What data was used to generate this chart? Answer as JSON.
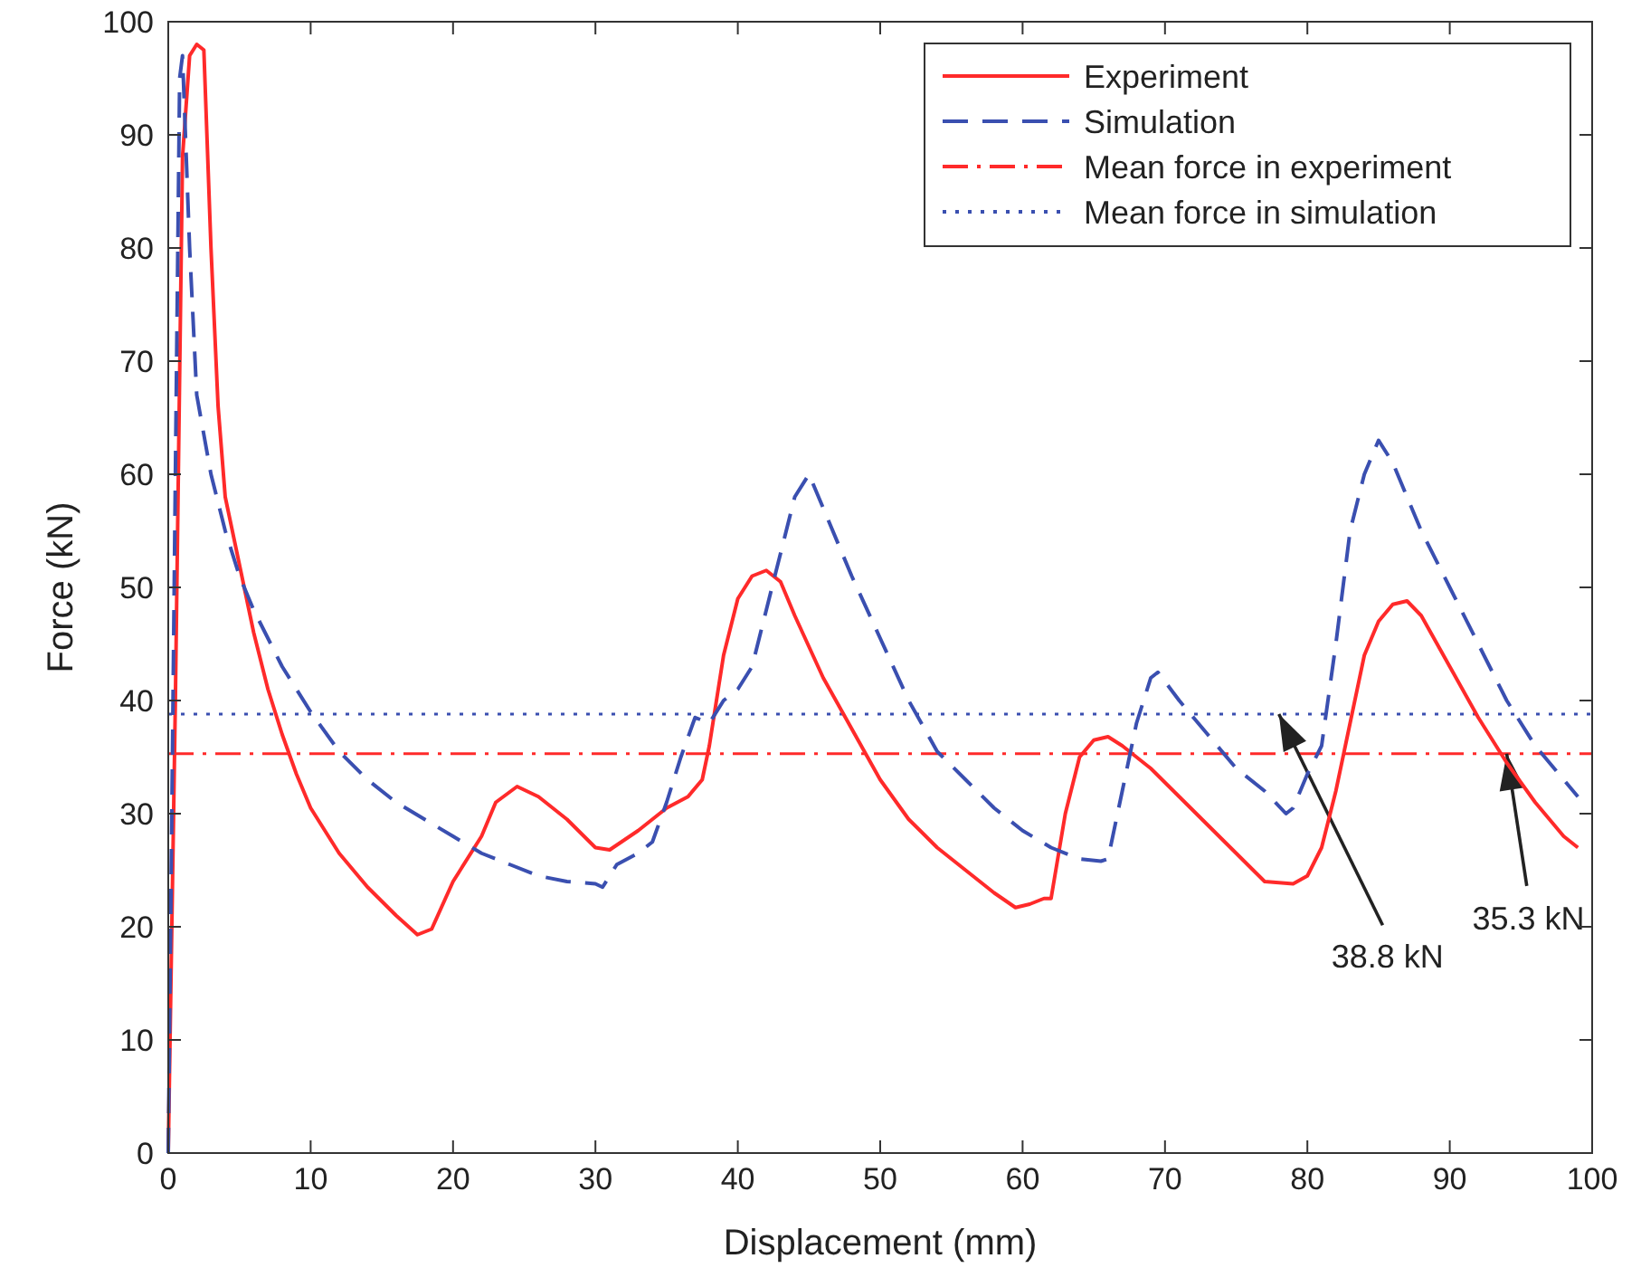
{
  "chart_data": {
    "type": "line",
    "xlabel": "Displacement (mm)",
    "ylabel": "Force (kN)",
    "xlim": [
      0,
      100
    ],
    "ylim": [
      0,
      100
    ],
    "xticks": [
      0,
      10,
      20,
      30,
      40,
      50,
      60,
      70,
      80,
      90,
      100
    ],
    "yticks": [
      0,
      10,
      20,
      30,
      40,
      50,
      60,
      70,
      80,
      90,
      100
    ],
    "legend": "top right",
    "series": [
      {
        "name": "Experiment",
        "color": "#ff2a2a",
        "line_style": "solid",
        "x": [
          0,
          0.5,
          1,
          1.5,
          2,
          2.5,
          3,
          3.5,
          4,
          5,
          6,
          7,
          8,
          9,
          10,
          12,
          14,
          16,
          17.5,
          18.5,
          20,
          22,
          23,
          24.5,
          26,
          28,
          30,
          31,
          33,
          35,
          36.5,
          37.5,
          38,
          39,
          40,
          41,
          42,
          43,
          44,
          46,
          48,
          50,
          52,
          54,
          56,
          58,
          59.5,
          60.5,
          61.5,
          62,
          63,
          64,
          65,
          66,
          67,
          69,
          71,
          73,
          75,
          77,
          79,
          80,
          81,
          82,
          83,
          84,
          85,
          86,
          87,
          88,
          90,
          92,
          94,
          96,
          98,
          99
        ],
        "values": [
          0,
          40,
          88,
          97,
          98,
          97.5,
          80,
          66,
          58,
          52,
          46,
          41,
          37,
          33.5,
          30.5,
          26.5,
          23.5,
          21,
          19.3,
          19.8,
          24,
          28,
          31,
          32.4,
          31.5,
          29.5,
          27,
          26.8,
          28.5,
          30.5,
          31.5,
          33,
          36,
          44,
          49,
          51,
          51.5,
          50.5,
          47.5,
          42,
          37.5,
          33,
          29.5,
          27,
          25,
          23,
          21.7,
          22,
          22.5,
          22.5,
          30,
          35,
          36.5,
          36.8,
          36,
          34,
          31.5,
          29,
          26.5,
          24,
          23.8,
          24.5,
          27,
          32,
          38,
          44,
          47,
          48.5,
          48.8,
          47.5,
          43,
          38.5,
          34.5,
          31,
          28,
          27
        ]
      },
      {
        "name": "Simulation",
        "color": "#3a4fb0",
        "line_style": "dashed",
        "x": [
          0,
          0.5,
          0.8,
          1,
          1.5,
          2,
          3,
          4,
          5,
          6,
          8,
          10,
          12,
          14,
          16,
          18,
          20,
          22,
          24,
          26,
          28,
          30,
          30.5,
          31.5,
          33,
          34,
          35,
          36,
          37,
          38,
          39,
          40,
          41,
          42,
          43,
          44,
          45,
          46,
          48,
          50,
          52,
          54,
          56,
          58,
          60,
          62,
          64,
          65.5,
          66,
          67,
          68,
          69,
          69.5,
          71,
          73,
          75,
          77,
          78.5,
          79,
          80,
          81,
          82,
          83,
          84,
          85,
          86,
          88,
          90,
          92,
          94,
          96,
          98,
          99
        ],
        "values": [
          0,
          60,
          95,
          97,
          80,
          67,
          60,
          55,
          51,
          48,
          43,
          39,
          35.5,
          33,
          31,
          29.5,
          28,
          26.5,
          25.5,
          24.5,
          24,
          23.8,
          23.5,
          25.5,
          26.5,
          27.5,
          31,
          35,
          38.5,
          38,
          40,
          41,
          43,
          48,
          53,
          58,
          60,
          57,
          51,
          45.5,
          40,
          35.5,
          33,
          30.5,
          28.5,
          27,
          26,
          25.8,
          26,
          32,
          38,
          42,
          42.5,
          40,
          37,
          34,
          32,
          30,
          30.5,
          33.5,
          36,
          45,
          55,
          60,
          63,
          61,
          55,
          50,
          45,
          40,
          36,
          33,
          31.5
        ]
      }
    ],
    "ref_lines": [
      {
        "axis": "y",
        "value": 35.3,
        "label": "Mean force in experiment",
        "color": "#ff2a2a",
        "line_style": "dashdot"
      },
      {
        "axis": "y",
        "value": 38.8,
        "label": "Mean force in simulation",
        "color": "#3a4fb0",
        "line_style": "dotted"
      }
    ],
    "annotations": [
      {
        "text": "38.8 kN",
        "x": 78,
        "y": 38.8
      },
      {
        "text": "35.3 kN",
        "x": 94,
        "y": 35.3
      }
    ]
  }
}
